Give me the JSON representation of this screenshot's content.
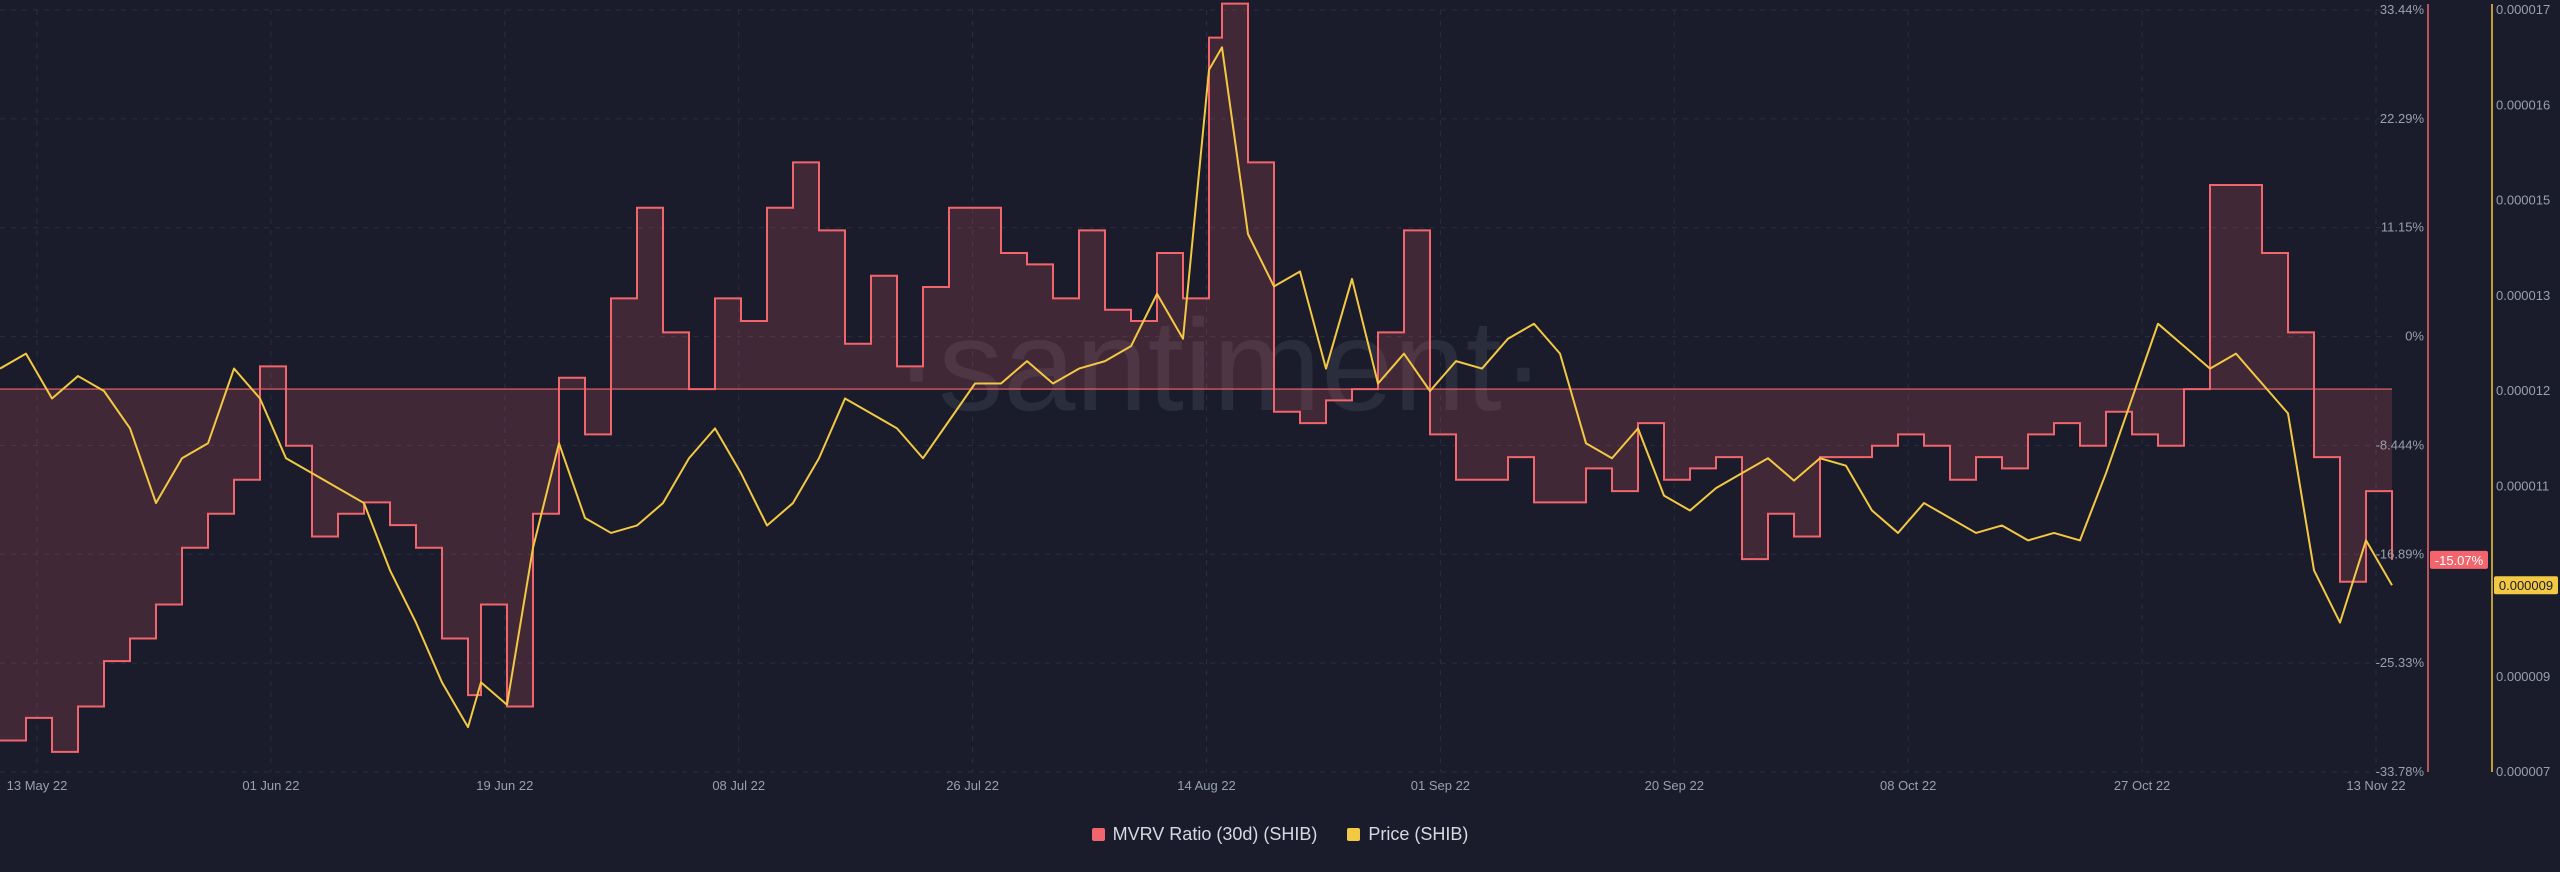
{
  "colors": {
    "background": "#1a1c2b",
    "grid": "#2b2e3f",
    "mvrv": "#f2656d",
    "mvrv_fill": "rgba(242,101,109,0.18)",
    "price": "#f3c843",
    "axis_text": "#9aa0ad",
    "watermark": "#2a2d3c"
  },
  "watermark": "·santiment·",
  "chart_data": {
    "type": "line",
    "x_labels": [
      "13 May 22",
      "01 Jun 22",
      "19 Jun 22",
      "08 Jul 22",
      "26 Jul 22",
      "14 Aug 22",
      "01 Sep 22",
      "20 Sep 22",
      "08 Oct 22",
      "27 Oct 22",
      "13 Nov 22"
    ],
    "xlim": [
      "2022-05-13",
      "2022-11-13"
    ],
    "grid": true,
    "legend_position": "bottom-center",
    "y_left": {
      "series": "MVRV Ratio (30d) (SHIB)",
      "unit": "%",
      "ticks": [
        "33.44%",
        "22.29%",
        "11.15%",
        "0%",
        "-8.444%",
        "-16.89%",
        "-25.33%",
        "-33.78%"
      ],
      "ylim": [
        -33.78,
        33.44
      ]
    },
    "y_right": {
      "series": "Price (SHIB)",
      "ticks": [
        "0.000017",
        "0.000016",
        "0.000015",
        "0.000013",
        "0.000012",
        "0.000011",
        "0.00001",
        "0.000009",
        "0.000007"
      ],
      "ylim": [
        6.8e-06,
        1.7e-05
      ]
    },
    "current_values": {
      "mvrv": "-15.07%",
      "price": "0.000009"
    },
    "series": [
      {
        "name": "MVRV Ratio (30d) (SHIB)",
        "axis": "left",
        "style": "step-area",
        "x": [
          "2022-05-13",
          "2022-05-15",
          "2022-05-17",
          "2022-05-19",
          "2022-05-21",
          "2022-05-23",
          "2022-05-25",
          "2022-05-27",
          "2022-05-29",
          "2022-05-31",
          "2022-06-02",
          "2022-06-04",
          "2022-06-06",
          "2022-06-08",
          "2022-06-10",
          "2022-06-12",
          "2022-06-14",
          "2022-06-16",
          "2022-06-18",
          "2022-06-19",
          "2022-06-21",
          "2022-06-23",
          "2022-06-25",
          "2022-06-27",
          "2022-06-29",
          "2022-07-01",
          "2022-07-03",
          "2022-07-05",
          "2022-07-07",
          "2022-07-09",
          "2022-07-11",
          "2022-07-13",
          "2022-07-15",
          "2022-07-17",
          "2022-07-19",
          "2022-07-21",
          "2022-07-23",
          "2022-07-25",
          "2022-07-27",
          "2022-07-29",
          "2022-07-31",
          "2022-08-02",
          "2022-08-04",
          "2022-08-06",
          "2022-08-08",
          "2022-08-10",
          "2022-08-12",
          "2022-08-14",
          "2022-08-15",
          "2022-08-17",
          "2022-08-19",
          "2022-08-21",
          "2022-08-23",
          "2022-08-25",
          "2022-08-27",
          "2022-08-29",
          "2022-08-31",
          "2022-09-02",
          "2022-09-04",
          "2022-09-06",
          "2022-09-08",
          "2022-09-10",
          "2022-09-12",
          "2022-09-14",
          "2022-09-16",
          "2022-09-18",
          "2022-09-20",
          "2022-09-22",
          "2022-09-24",
          "2022-09-26",
          "2022-09-28",
          "2022-09-30",
          "2022-10-02",
          "2022-10-04",
          "2022-10-06",
          "2022-10-08",
          "2022-10-10",
          "2022-10-12",
          "2022-10-14",
          "2022-10-16",
          "2022-10-18",
          "2022-10-20",
          "2022-10-22",
          "2022-10-24",
          "2022-10-26",
          "2022-10-28",
          "2022-10-30",
          "2022-11-01",
          "2022-11-03",
          "2022-11-05",
          "2022-11-07",
          "2022-11-09",
          "2022-11-11",
          "2022-11-13"
        ],
        "values": [
          -31,
          -29,
          -32,
          -28,
          -24,
          -22,
          -19,
          -14,
          -11,
          -8,
          2,
          -5,
          -13,
          -11,
          -10,
          -12,
          -14,
          -22,
          -27,
          -19,
          -28,
          -11,
          1,
          -4,
          8,
          16,
          5,
          0,
          8,
          6,
          16,
          20,
          14,
          4,
          10,
          2,
          9,
          16,
          16,
          12,
          11,
          8,
          14,
          7,
          6,
          12,
          8,
          31,
          34,
          20,
          -2,
          -3,
          -1,
          0,
          5,
          14,
          -4,
          -8,
          -8,
          -6,
          -10,
          -10,
          -7,
          -9,
          -3,
          -8,
          -7,
          -6,
          -15,
          -11,
          -13,
          -6,
          -6,
          -5,
          -4,
          -5,
          -8,
          -6,
          -7,
          -4,
          -3,
          -5,
          -2,
          -4,
          -5,
          0,
          18,
          18,
          12,
          5,
          -6,
          -17,
          -9,
          -15.07
        ]
      },
      {
        "name": "Price (SHIB)",
        "axis": "right",
        "style": "line",
        "x": [
          "2022-05-13",
          "2022-05-15",
          "2022-05-17",
          "2022-05-19",
          "2022-05-21",
          "2022-05-23",
          "2022-05-25",
          "2022-05-27",
          "2022-05-29",
          "2022-05-31",
          "2022-06-02",
          "2022-06-04",
          "2022-06-06",
          "2022-06-08",
          "2022-06-10",
          "2022-06-12",
          "2022-06-14",
          "2022-06-16",
          "2022-06-18",
          "2022-06-19",
          "2022-06-21",
          "2022-06-23",
          "2022-06-25",
          "2022-06-27",
          "2022-06-29",
          "2022-07-01",
          "2022-07-03",
          "2022-07-05",
          "2022-07-07",
          "2022-07-09",
          "2022-07-11",
          "2022-07-13",
          "2022-07-15",
          "2022-07-17",
          "2022-07-19",
          "2022-07-21",
          "2022-07-23",
          "2022-07-25",
          "2022-07-27",
          "2022-07-29",
          "2022-07-31",
          "2022-08-02",
          "2022-08-04",
          "2022-08-06",
          "2022-08-08",
          "2022-08-10",
          "2022-08-12",
          "2022-08-14",
          "2022-08-15",
          "2022-08-17",
          "2022-08-19",
          "2022-08-21",
          "2022-08-23",
          "2022-08-25",
          "2022-08-27",
          "2022-08-29",
          "2022-08-31",
          "2022-09-02",
          "2022-09-04",
          "2022-09-06",
          "2022-09-08",
          "2022-09-10",
          "2022-09-12",
          "2022-09-14",
          "2022-09-16",
          "2022-09-18",
          "2022-09-20",
          "2022-09-22",
          "2022-09-24",
          "2022-09-26",
          "2022-09-28",
          "2022-09-30",
          "2022-10-02",
          "2022-10-04",
          "2022-10-06",
          "2022-10-08",
          "2022-10-10",
          "2022-10-12",
          "2022-10-14",
          "2022-10-16",
          "2022-10-18",
          "2022-10-20",
          "2022-10-22",
          "2022-10-24",
          "2022-10-26",
          "2022-10-28",
          "2022-10-30",
          "2022-11-01",
          "2022-11-03",
          "2022-11-05",
          "2022-11-07",
          "2022-11-09",
          "2022-11-11",
          "2022-11-13"
        ],
        "values": [
          1.22e-05,
          1.24e-05,
          1.18e-05,
          1.21e-05,
          1.19e-05,
          1.14e-05,
          1.04e-05,
          1.1e-05,
          1.12e-05,
          1.22e-05,
          1.18e-05,
          1.1e-05,
          1.08e-05,
          1.06e-05,
          1.04e-05,
          9.5e-06,
          8.8e-06,
          8e-06,
          7.4e-06,
          8e-06,
          7.7e-06,
          9.8e-06,
          1.12e-05,
          1.02e-05,
          1e-05,
          1.01e-05,
          1.04e-05,
          1.1e-05,
          1.14e-05,
          1.08e-05,
          1.01e-05,
          1.04e-05,
          1.1e-05,
          1.18e-05,
          1.16e-05,
          1.14e-05,
          1.1e-05,
          1.15e-05,
          1.2e-05,
          1.2e-05,
          1.23e-05,
          1.2e-05,
          1.22e-05,
          1.23e-05,
          1.25e-05,
          1.32e-05,
          1.26e-05,
          1.62e-05,
          1.65e-05,
          1.4e-05,
          1.33e-05,
          1.35e-05,
          1.22e-05,
          1.34e-05,
          1.2e-05,
          1.24e-05,
          1.19e-05,
          1.23e-05,
          1.22e-05,
          1.26e-05,
          1.28e-05,
          1.24e-05,
          1.12e-05,
          1.1e-05,
          1.14e-05,
          1.05e-05,
          1.03e-05,
          1.06e-05,
          1.08e-05,
          1.1e-05,
          1.07e-05,
          1.1e-05,
          1.09e-05,
          1.03e-05,
          1e-05,
          1.04e-05,
          1.02e-05,
          1e-05,
          1.01e-05,
          9.9e-06,
          1e-05,
          9.9e-06,
          1.08e-05,
          1.18e-05,
          1.28e-05,
          1.25e-05,
          1.22e-05,
          1.24e-05,
          1.2e-05,
          1.16e-05,
          9.5e-06,
          8.8e-06,
          9.9e-06,
          9.3e-06
        ]
      }
    ]
  },
  "legend": [
    {
      "label": "MVRV Ratio (30d) (SHIB)",
      "color": "#f2656d"
    },
    {
      "label": "Price (SHIB)",
      "color": "#f3c843"
    }
  ]
}
